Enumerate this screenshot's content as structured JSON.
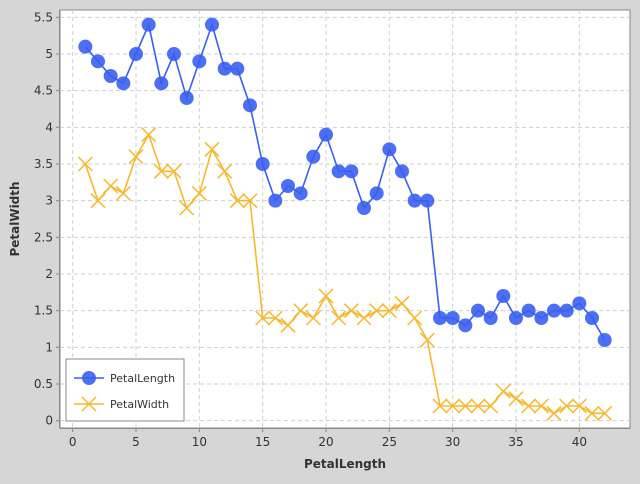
{
  "chart_data": {
    "type": "line",
    "title": "",
    "xlabel": "PetalLength",
    "ylabel": "PetalWidth",
    "xlim": [
      -1,
      44
    ],
    "ylim": [
      -0.1,
      5.6
    ],
    "xticks": [
      0,
      5,
      10,
      15,
      20,
      25,
      30,
      35,
      40
    ],
    "yticks": [
      0,
      0.5,
      1,
      1.5,
      2,
      2.5,
      3,
      3.5,
      4,
      4.5,
      5,
      5.5
    ],
    "grid": true,
    "legend_position": "bottom-left",
    "x": [
      1,
      2,
      3,
      4,
      5,
      6,
      7,
      8,
      9,
      10,
      11,
      12,
      13,
      14,
      15,
      16,
      17,
      18,
      19,
      20,
      21,
      22,
      23,
      24,
      25,
      26,
      27,
      28,
      29,
      30,
      31,
      32,
      33,
      34,
      35,
      36,
      37,
      38,
      39,
      40,
      41,
      42
    ],
    "series": [
      {
        "name": "PetalLength",
        "color": "#3a5ff0",
        "marker": "circle",
        "values": [
          5.1,
          4.9,
          4.7,
          4.6,
          5.0,
          5.4,
          4.6,
          5.0,
          4.4,
          4.9,
          5.4,
          4.8,
          4.8,
          4.3,
          3.5,
          3.0,
          3.2,
          3.1,
          3.6,
          3.9,
          3.4,
          3.4,
          2.9,
          3.1,
          3.7,
          3.4,
          3.0,
          3.0,
          1.4,
          1.4,
          1.3,
          1.5,
          1.4,
          1.7,
          1.4,
          1.5,
          1.4,
          1.5,
          1.5,
          1.6,
          1.4,
          1.1
        ]
      },
      {
        "name": "PetalWidth",
        "color": "#f5b82e",
        "marker": "x",
        "values": [
          3.5,
          3.0,
          3.2,
          3.1,
          3.6,
          3.9,
          3.4,
          3.4,
          2.9,
          3.1,
          3.7,
          3.4,
          3.0,
          3.0,
          1.4,
          1.4,
          1.3,
          1.5,
          1.4,
          1.7,
          1.4,
          1.5,
          1.4,
          1.5,
          1.5,
          1.6,
          1.4,
          1.1,
          0.2,
          0.2,
          0.2,
          0.2,
          0.2,
          0.4,
          0.3,
          0.2,
          0.2,
          0.1,
          0.2,
          0.2,
          0.1,
          0.1
        ]
      }
    ]
  }
}
